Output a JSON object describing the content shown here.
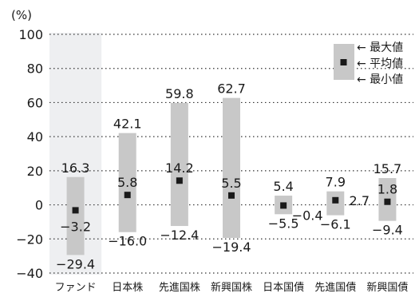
{
  "chart_data": {
    "type": "range-bar",
    "unit_label": "(%)",
    "ylim": [
      -40,
      100
    ],
    "yticks": [
      {
        "v": 100,
        "t": "100"
      },
      {
        "v": 80,
        "t": "80"
      },
      {
        "v": 60,
        "t": "60"
      },
      {
        "v": 40,
        "t": "40"
      },
      {
        "v": 20,
        "t": "20"
      },
      {
        "v": 0,
        "t": "0"
      },
      {
        "v": -20,
        "t": "−20"
      },
      {
        "v": -40,
        "t": "−40"
      }
    ],
    "categories": [
      "ファンド",
      "日本株",
      "先進国株",
      "新興国株",
      "日本国債",
      "先進国債",
      "新興国債"
    ],
    "highlight_index": 0,
    "max": [
      16.3,
      42.1,
      59.8,
      62.7,
      5.4,
      7.9,
      15.7
    ],
    "mean": [
      -3.2,
      5.8,
      14.2,
      5.5,
      -0.4,
      2.7,
      1.8
    ],
    "min": [
      -29.4,
      -16.0,
      -12.4,
      -19.4,
      -5.5,
      -6.1,
      -9.4
    ],
    "max_labels": [
      "16.3",
      "42.1",
      "59.8",
      "62.7",
      "5.4",
      "7.9",
      "15.7"
    ],
    "mean_labels": [
      "−3.2",
      "5.8",
      "14.2",
      "5.5",
      "−0.4",
      "2.7",
      "1.8"
    ],
    "min_labels": [
      "−29.4",
      "−16.0",
      "−12.4",
      "−19.4",
      "−5.5",
      "−6.1",
      "−9.4"
    ],
    "legend": {
      "max": "← 最大値",
      "mean": "← 平均値",
      "min": "← 最小値",
      "placement": "top-right"
    },
    "colors": {
      "bar": "#c8c8c8",
      "highlight": "#eeeff1",
      "marker": "#1a1a1a",
      "grid": "#333333"
    },
    "grid": "dotted horizontal"
  }
}
